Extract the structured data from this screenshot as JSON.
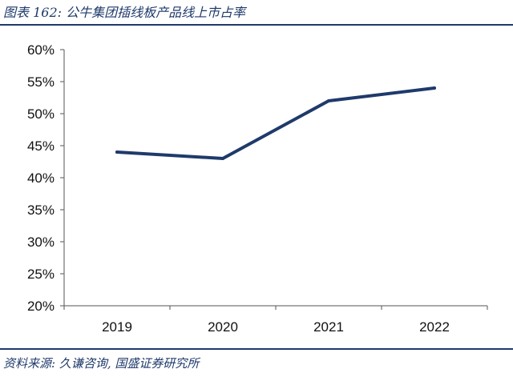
{
  "header": {
    "title": "图表 162: 公牛集团插线板产品线上市占率"
  },
  "footer": {
    "source": "资料来源: 久谦咨询, 国盛证券研究所"
  },
  "colors": {
    "line": "#1f3a6b",
    "axis": "#555555"
  },
  "chart_data": {
    "type": "line",
    "title": "",
    "xlabel": "",
    "ylabel": "",
    "categories": [
      "2019",
      "2020",
      "2021",
      "2022"
    ],
    "series": [
      {
        "values": [
          0.44,
          0.43,
          0.52,
          0.54
        ]
      }
    ],
    "ylim": [
      0.2,
      0.6
    ],
    "yticks": [
      0.2,
      0.25,
      0.3,
      0.35,
      0.4,
      0.45,
      0.5,
      0.55,
      0.6
    ],
    "ytick_labels": [
      "20%",
      "25%",
      "30%",
      "35%",
      "40%",
      "45%",
      "50%",
      "55%",
      "60%"
    ],
    "grid": false,
    "legend": "none"
  }
}
